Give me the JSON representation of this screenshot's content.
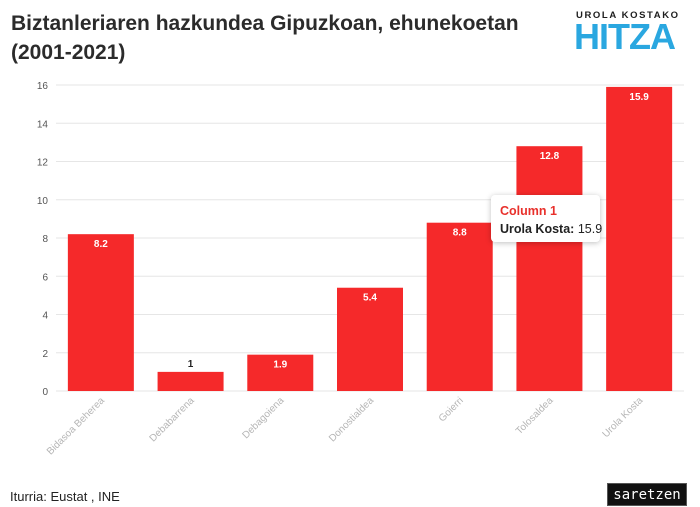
{
  "header": {
    "title": "Biztanleriaren hazkundea Gipuzkoan, ehunekoetan (2001-2021)"
  },
  "logo": {
    "top_text": "UROLA KOSTAKO",
    "main_text": "HITZA"
  },
  "footer": {
    "source": "Iturria: Eustat , INE",
    "brand": "saretzen"
  },
  "tooltip": {
    "series_name": "Column 1",
    "category": "Urola Kosta:",
    "value": "15.9"
  },
  "colors": {
    "bar": "#f5292a",
    "grid": "#e6e6e6",
    "tooltip_title": "#e8302b",
    "logo": "#2aa7e0"
  },
  "chart_data": {
    "type": "bar",
    "title": "Biztanleriaren hazkundea Gipuzkoan, ehunekoetan (2001-2021)",
    "xlabel": "",
    "ylabel": "",
    "categories": [
      "Bidasoa Beherea",
      "Debabarrena",
      "Debagoiena",
      "Donostialdea",
      "Goierri",
      "Tolosaldea",
      "Urola Kosta"
    ],
    "series": [
      {
        "values": [
          8.2,
          1,
          1.9,
          5.4,
          8.8,
          12.8,
          15.9
        ],
        "labels": [
          "8.2",
          "1",
          "1.9",
          "5.4",
          "8.8",
          "12.8",
          "15.9"
        ]
      }
    ],
    "ylim": [
      0,
      16
    ],
    "yticks": [
      0,
      2,
      4,
      6,
      8,
      10,
      12,
      14,
      16
    ],
    "grid": true,
    "legend": "none"
  }
}
